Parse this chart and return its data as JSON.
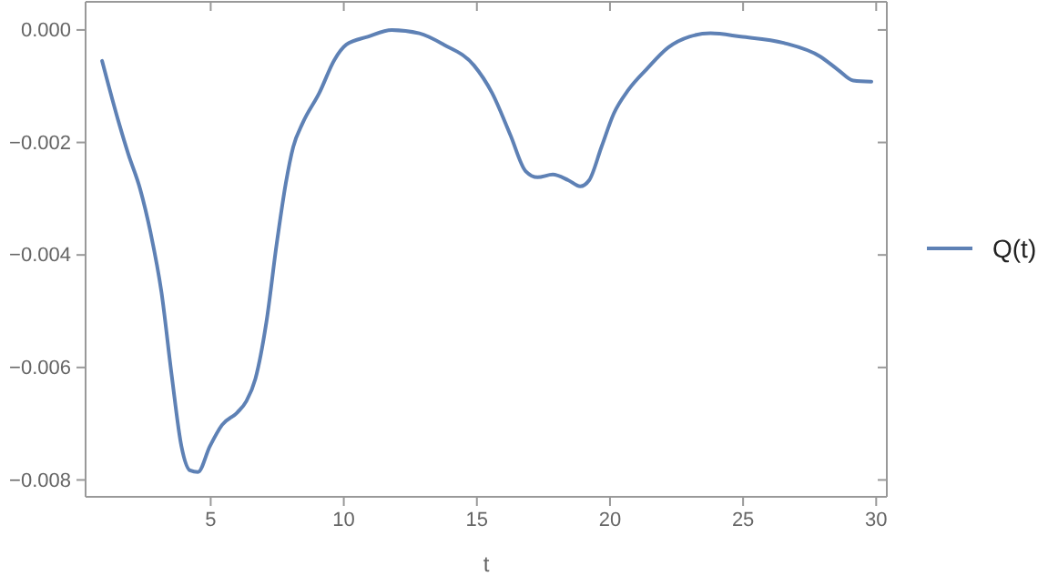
{
  "chart_data": {
    "type": "line",
    "xlabel": "t",
    "legend": "right",
    "grid": false,
    "xlim": [
      0.3,
      30.4
    ],
    "ylim": [
      -0.0083,
      0.0005
    ],
    "xticks": [
      5,
      10,
      15,
      20,
      25,
      30
    ],
    "yticks": [
      {
        "value": 0,
        "label": "0.000"
      },
      {
        "value": -0.002,
        "label": "−0.002"
      },
      {
        "value": -0.004,
        "label": "−0.004"
      },
      {
        "value": -0.006,
        "label": "−0.006"
      },
      {
        "value": -0.008,
        "label": "−0.008"
      }
    ],
    "series": [
      {
        "name": "Q(t)",
        "color": "#5e81b5",
        "x": [
          0.92,
          1.55,
          1.9,
          2.35,
          2.74,
          3.15,
          3.54,
          3.9,
          4.22,
          4.52,
          4.97,
          5.43,
          6.0,
          6.34,
          6.68,
          7.09,
          7.48,
          7.82,
          8.1,
          8.46,
          9.08,
          9.65,
          10.1,
          10.9,
          11.8,
          12.84,
          13.75,
          14.89,
          15.57,
          16.26,
          16.83,
          17.28,
          17.85,
          18.43,
          18.88,
          19.22,
          19.68,
          20.14,
          20.7,
          21.39,
          22.19,
          22.98,
          23.78,
          24.92,
          26.52,
          27.89,
          28.57,
          29.14,
          29.82
        ],
        "values": [
          -0.00055,
          -0.00165,
          -0.0022,
          -0.00283,
          -0.0036,
          -0.00466,
          -0.00616,
          -0.0074,
          -0.00783,
          -0.00786,
          -0.0074,
          -0.00702,
          -0.0068,
          -0.0066,
          -0.0062,
          -0.0052,
          -0.0038,
          -0.00273,
          -0.00208,
          -0.00165,
          -0.00112,
          -0.00053,
          -0.00026,
          -0.00012,
          0,
          -6e-05,
          -0.00026,
          -0.00063,
          -0.00112,
          -0.00187,
          -0.00251,
          -0.00262,
          -0.00257,
          -0.00267,
          -0.00278,
          -0.00267,
          -0.00208,
          -0.00149,
          -0.00106,
          -0.00069,
          -0.00031,
          -0.00012,
          -6e-05,
          -0.00012,
          -0.00023,
          -0.00047,
          -0.00071,
          -0.0009,
          -0.00092
        ]
      }
    ]
  }
}
